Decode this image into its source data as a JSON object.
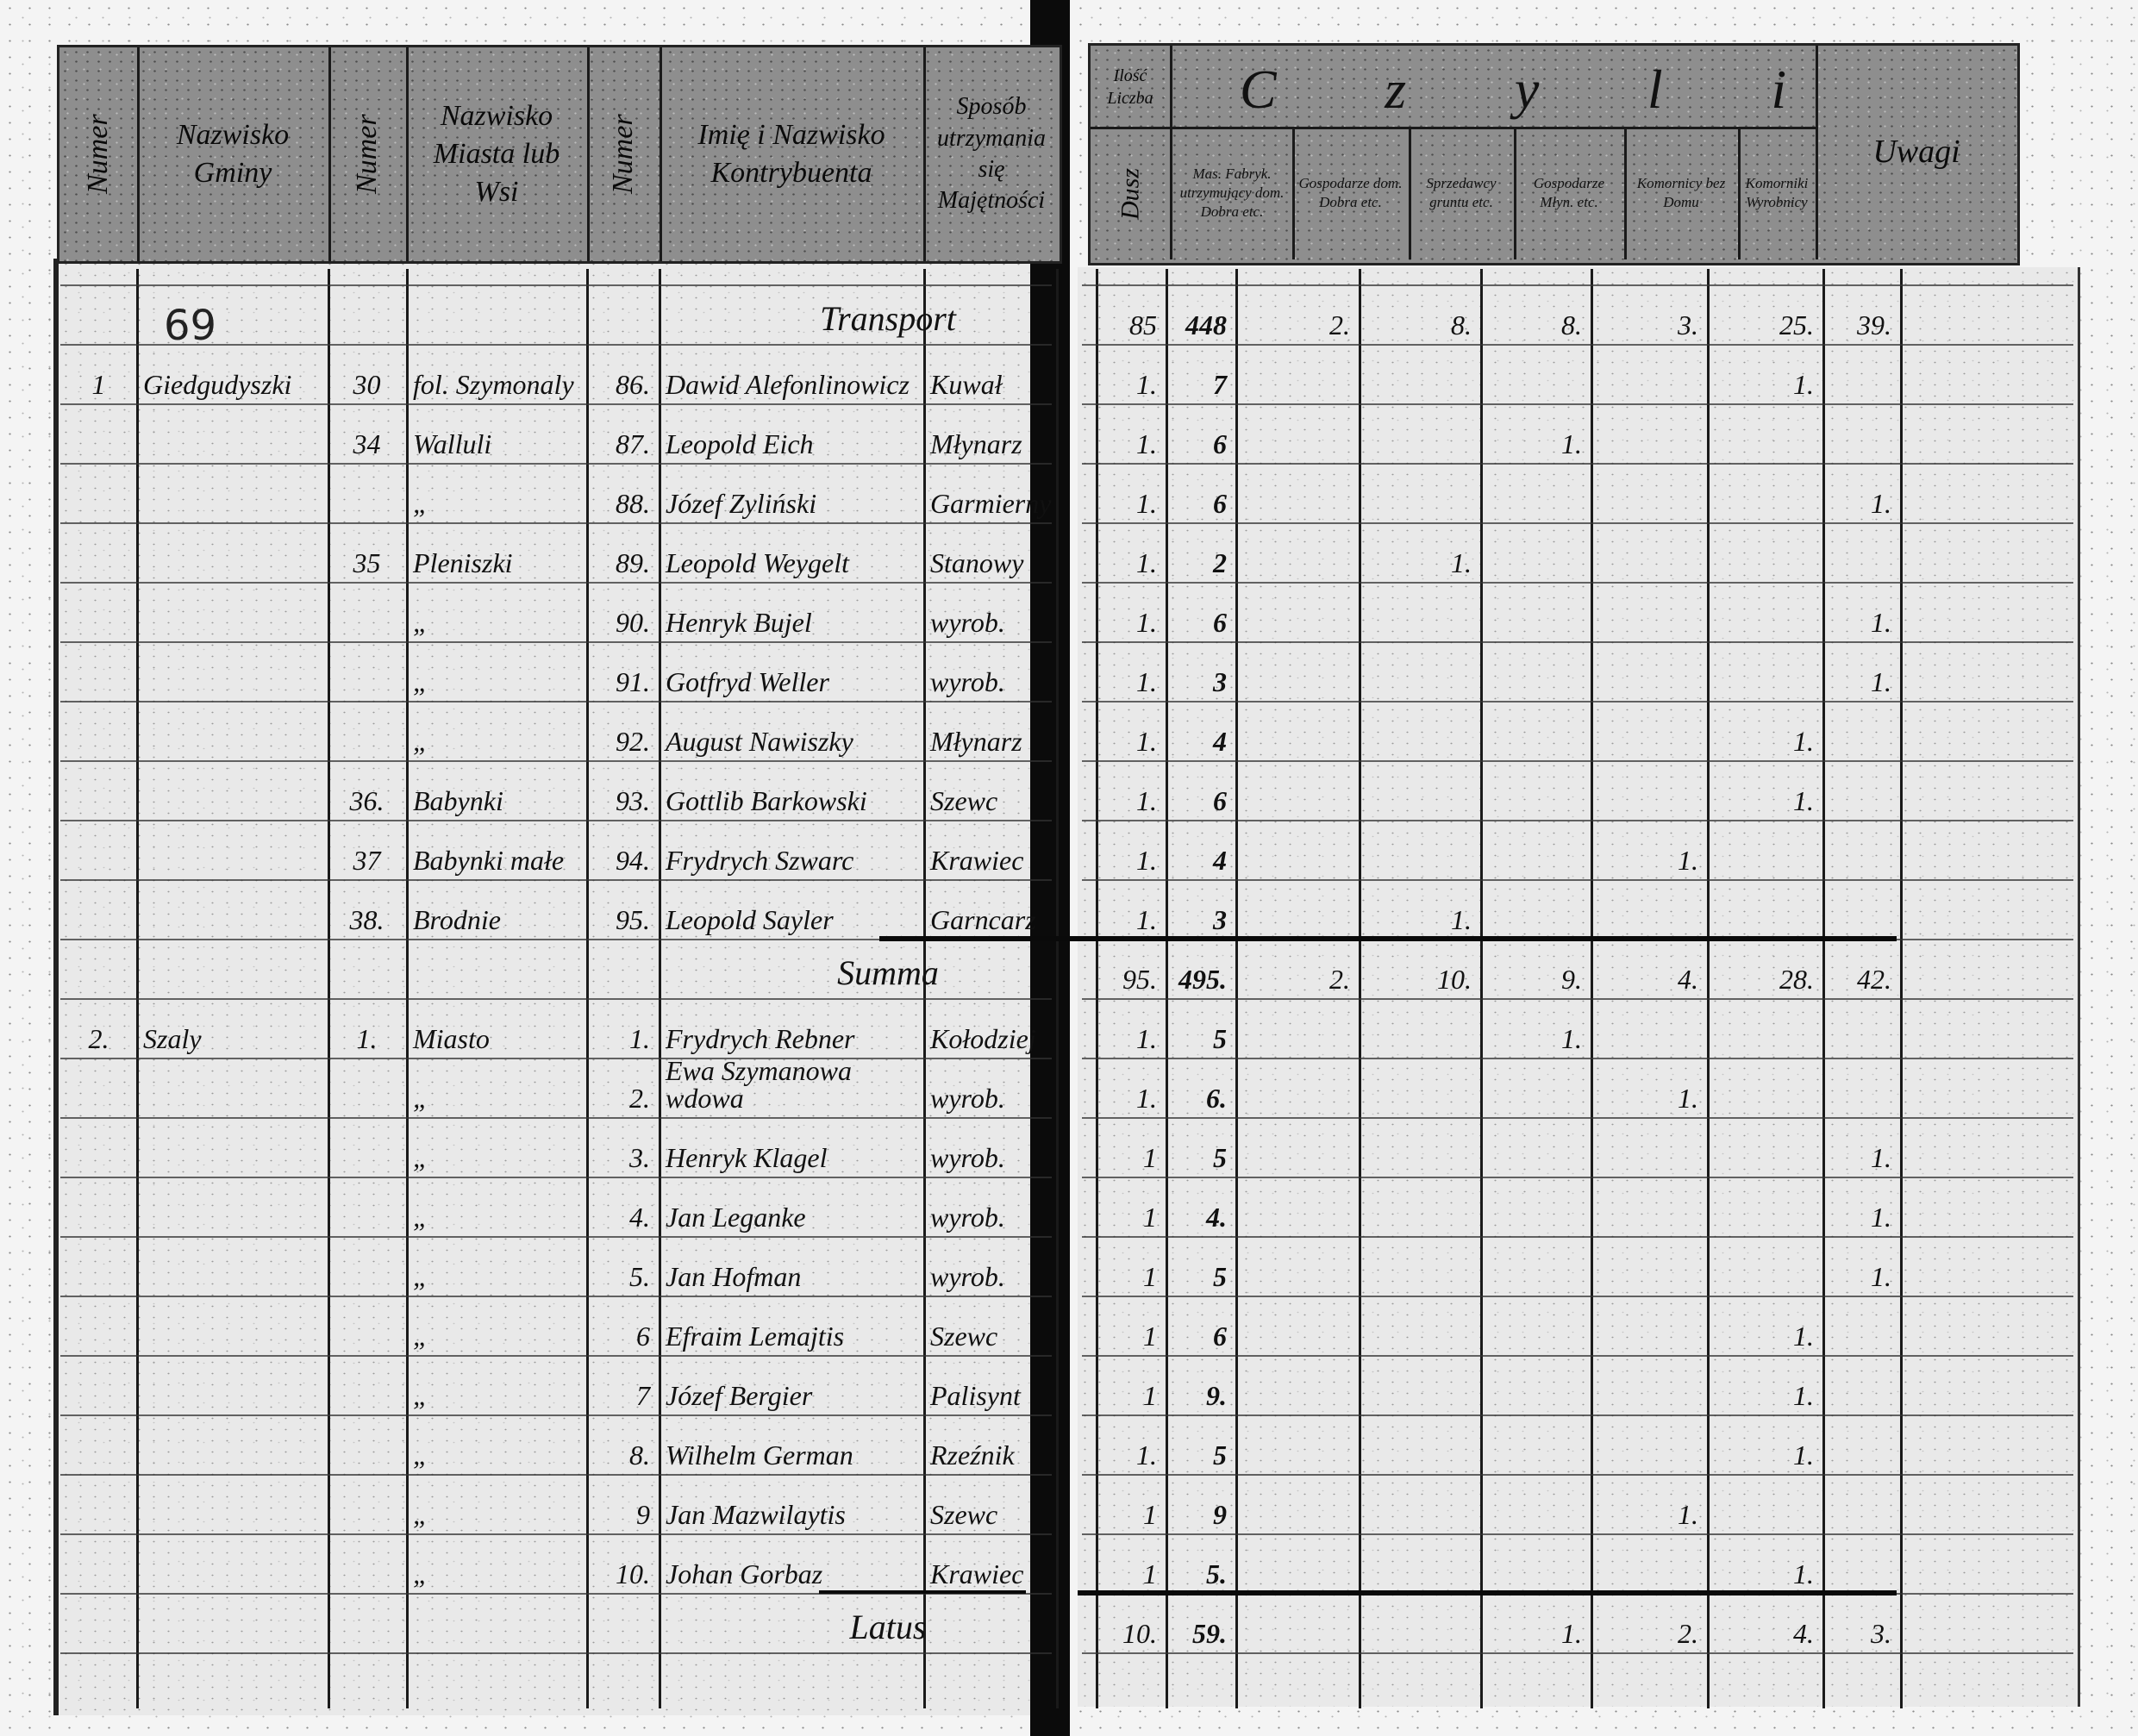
{
  "header": {
    "left_columns": [
      "Numer",
      "Nazwisko Gminy",
      "Numer",
      "Nazwisko Miasta lub Wsi",
      "Numer",
      "Imię i Nazwisko Kontrybuenta",
      "Sposób utrzymania się Majętności"
    ],
    "houses_label": "Ilość Liczba",
    "souls_label": "Dusz",
    "category_title": [
      "C",
      "z",
      "y",
      "l",
      "i"
    ],
    "categories": [
      "Mas. Fabryk. utrzymujący dom. Dobra etc.",
      "Gospodarze dom. Dobra etc.",
      "Sprzedawcy gruntu etc.",
      "Gospodarze Młyn. etc.",
      "Komornicy bez Domu",
      "Komorniki Wyrobnicy"
    ],
    "remarks_label": "Uwagi"
  },
  "annotation": "69",
  "rows": [
    {
      "type": "carry",
      "label": "Transport",
      "houses": "85",
      "souls": "448",
      "c": [
        "2.",
        "8.",
        "8.",
        "3.",
        "25.",
        "39."
      ]
    },
    {
      "gmina_no": "1",
      "gmina": "Giedgudyszki",
      "village_no": "30",
      "village": "fol. Szymonaly",
      "no": "86.",
      "name": "Dawid Alefonlinowicz",
      "occupation": "Kuwał",
      "houses": "1.",
      "souls": "7",
      "c": [
        "",
        "",
        "",
        "",
        "1.",
        ""
      ]
    },
    {
      "village_no": "34",
      "village": "Walluli",
      "no": "87.",
      "name": "Leopold Eich",
      "occupation": "Młynarz",
      "houses": "1.",
      "souls": "6",
      "c": [
        "",
        "",
        "1.",
        "",
        "",
        ""
      ]
    },
    {
      "village": "„",
      "no": "88.",
      "name": "Józef Zyliński",
      "occupation": "Garmierny",
      "houses": "1.",
      "souls": "6",
      "c": [
        "",
        "",
        "",
        "",
        "",
        "1."
      ]
    },
    {
      "village_no": "35",
      "village": "Pleniszki",
      "no": "89.",
      "name": "Leopold Weygelt",
      "occupation": "Stanowy",
      "houses": "1.",
      "souls": "2",
      "c": [
        "",
        "1.",
        "",
        "",
        "",
        ""
      ]
    },
    {
      "village": "„",
      "no": "90.",
      "name": "Henryk Bujel",
      "occupation": "wyrob.",
      "houses": "1.",
      "souls": "6",
      "c": [
        "",
        "",
        "",
        "",
        "",
        "1."
      ]
    },
    {
      "village": "„",
      "no": "91.",
      "name": "Gotfryd Weller",
      "occupation": "wyrob.",
      "houses": "1.",
      "souls": "3",
      "c": [
        "",
        "",
        "",
        "",
        "",
        "1."
      ]
    },
    {
      "village": "„",
      "no": "92.",
      "name": "August Nawiszky",
      "occupation": "Młynarz",
      "houses": "1.",
      "souls": "4",
      "c": [
        "",
        "",
        "",
        "",
        "1.",
        ""
      ]
    },
    {
      "village_no": "36.",
      "village": "Babynki",
      "no": "93.",
      "name": "Gottlib Barkowski",
      "occupation": "Szewc",
      "houses": "1.",
      "souls": "6",
      "c": [
        "",
        "",
        "",
        "",
        "1.",
        ""
      ]
    },
    {
      "village_no": "37",
      "village": "Babynki małe",
      "no": "94.",
      "name": "Frydrych Szwarc",
      "occupation": "Krawiec",
      "houses": "1.",
      "souls": "4",
      "c": [
        "",
        "",
        "",
        "1.",
        "",
        ""
      ]
    },
    {
      "village_no": "38.",
      "village": "Brodnie",
      "no": "95.",
      "name": "Leopold Sayler",
      "occupation": "Garncarz",
      "houses": "1.",
      "souls": "3",
      "c": [
        "",
        "1.",
        "",
        "",
        "",
        ""
      ]
    },
    {
      "type": "carry",
      "label": "Summa",
      "houses": "95.",
      "souls": "495.",
      "c": [
        "2.",
        "10.",
        "9.",
        "4.",
        "28.",
        "42."
      ]
    },
    {
      "gmina_no": "2.",
      "gmina": "Szaly",
      "village_no": "1.",
      "village": "Miasto",
      "no": "1.",
      "name": "Frydrych Rebner",
      "occupation": "Kołodziej",
      "houses": "1.",
      "souls": "5",
      "c": [
        "",
        "",
        "1.",
        "",
        "",
        ""
      ]
    },
    {
      "village": "„",
      "no": "2.",
      "name": "Ewa Szymanowa wdowa",
      "occupation": "wyrob.",
      "houses": "1.",
      "souls": "6.",
      "c": [
        "",
        "",
        "",
        "1.",
        "",
        ""
      ]
    },
    {
      "village": "„",
      "no": "3.",
      "name": "Henryk Klagel",
      "occupation": "wyrob.",
      "houses": "1",
      "souls": "5",
      "c": [
        "",
        "",
        "",
        "",
        "",
        "1."
      ]
    },
    {
      "village": "„",
      "no": "4.",
      "name": "Jan Leganke",
      "occupation": "wyrob.",
      "houses": "1",
      "souls": "4.",
      "c": [
        "",
        "",
        "",
        "",
        "",
        "1."
      ]
    },
    {
      "village": "„",
      "no": "5.",
      "name": "Jan Hofman",
      "occupation": "wyrob.",
      "houses": "1",
      "souls": "5",
      "c": [
        "",
        "",
        "",
        "",
        "",
        "1."
      ]
    },
    {
      "village": "„",
      "no": "6",
      "name": "Efraim Lemajtis",
      "occupation": "Szewc",
      "houses": "1",
      "souls": "6",
      "c": [
        "",
        "",
        "",
        "",
        "1.",
        ""
      ]
    },
    {
      "village": "„",
      "no": "7",
      "name": "Józef Bergier",
      "occupation": "Palisynt",
      "houses": "1",
      "souls": "9.",
      "c": [
        "",
        "",
        "",
        "",
        "1.",
        ""
      ]
    },
    {
      "village": "„",
      "no": "8.",
      "name": "Wilhelm German",
      "occupation": "Rzeźnik",
      "houses": "1.",
      "souls": "5",
      "c": [
        "",
        "",
        "",
        "",
        "1.",
        ""
      ]
    },
    {
      "village": "„",
      "no": "9",
      "name": "Jan Mazwilaytis",
      "occupation": "Szewc",
      "houses": "1",
      "souls": "9",
      "c": [
        "",
        "",
        "",
        "1.",
        "",
        ""
      ]
    },
    {
      "village": "„",
      "no": "10.",
      "name": "Johan Gorbaz",
      "occupation": "Krawiec",
      "houses": "1",
      "souls": "5.",
      "c": [
        "",
        "",
        "",
        "",
        "1.",
        ""
      ]
    },
    {
      "type": "carry",
      "label": "Latus",
      "houses": "10.",
      "souls": "59.",
      "c": [
        "",
        "",
        "1.",
        "2.",
        "4.",
        "3."
      ]
    }
  ]
}
